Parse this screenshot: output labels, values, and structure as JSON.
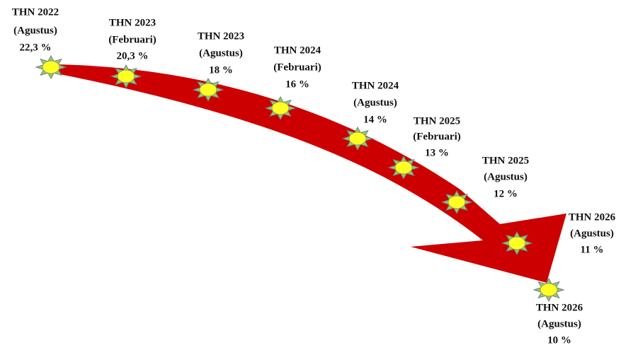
{
  "nodes": [
    {
      "year": "THN 2022",
      "period": "(Agustus)",
      "value": "22,3 %"
    },
    {
      "year": "THN 2023",
      "period": "(Februari)",
      "value": "20,3 %"
    },
    {
      "year": "THN 2023",
      "period": "(Agustus)",
      "value": "18 %"
    },
    {
      "year": "THN 2024",
      "period": "(Februari)",
      "value": "16 %"
    },
    {
      "year": "THN 2024",
      "period": "(Agustus)",
      "value": "14 %"
    },
    {
      "year": "THN 2025",
      "period": "(Februari)",
      "value": "13 %"
    },
    {
      "year": "THN 2025",
      "period": "(Agustus)",
      "value": "12 %"
    },
    {
      "year": "THN 2026",
      "period": "(Agustus)",
      "value": "11 %"
    },
    {
      "year": "THN 2026",
      "period": "(Agustus)",
      "value": "10 %"
    }
  ]
}
